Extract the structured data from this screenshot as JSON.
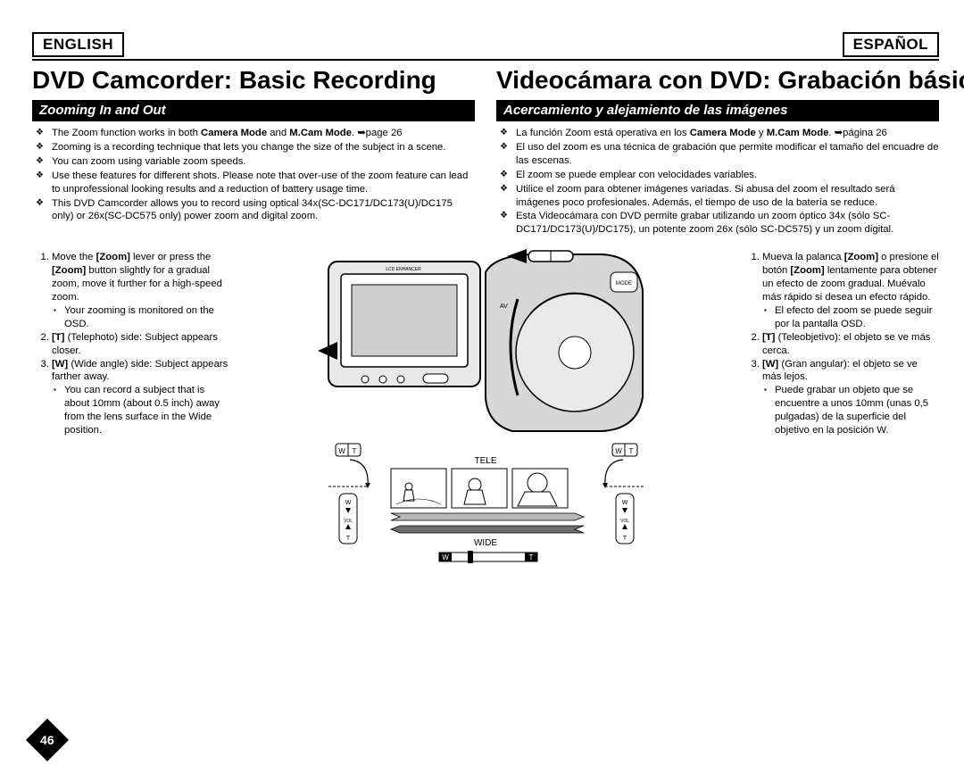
{
  "lang_left": "ENGLISH",
  "lang_right": "ESPAÑOL",
  "page_number": "46",
  "english": {
    "chapter": "DVD Camcorder: Basic Recording",
    "section": "Zooming In and Out",
    "bullets": [
      "The Zoom function works in both <b>Camera Mode</b> and <b>M.Cam Mode</b>. ➥page 26",
      "Zooming is a recording technique that lets you change the size of the subject in a scene.",
      "You can zoom using variable zoom speeds.",
      "Use these features for different shots. Please note that over-use of the zoom feature can lead to unprofessional looking results and a reduction of battery usage time.",
      "This DVD Camcorder allows you to record using optical 34x(SC-DC171/DC173(U)/DC175 only) or 26x(SC-DC575 only) power zoom and digital zoom."
    ],
    "steps": [
      {
        "text": "Move the <b>[Zoom]</b> lever or press the <b>[Zoom]</b> button slightly for a gradual zoom, move it further for a high-speed zoom.",
        "sub": [
          "Your zooming is monitored on the OSD."
        ]
      },
      {
        "text": "<b>[T]</b> (Telephoto) side: Subject appears closer."
      },
      {
        "text": "<b>[W]</b> (Wide angle) side: Subject appears farther away.",
        "sub": [
          "You can record a subject that is about 10mm (about 0.5 inch) away from the lens surface in the Wide position."
        ]
      }
    ]
  },
  "spanish": {
    "chapter": "Videocámara con DVD: Grabación básica",
    "section": "Acercamiento y alejamiento de las imágenes",
    "bullets": [
      "La función Zoom está operativa en los <b>Camera Mode</b> y <b>M.Cam Mode</b>. ➥página 26",
      "El uso del zoom es una técnica de grabación que permite modificar el tamaño del encuadre de las escenas.",
      "El zoom se puede emplear con velocidades variables.",
      "Utilice el zoom para obtener imágenes variadas. Si abusa del zoom el resultado será imágenes poco profesionales. Además, el tiempo de uso de la batería se reduce.",
      "Esta Videocámara con DVD permite grabar utilizando un zoom óptico 34x (sólo SC-DC171/DC173(U)/DC175), un potente zoom 26x (sólo SC-DC575) y un zoom digital."
    ],
    "steps": [
      {
        "text": "Mueva la palanca <b>[Zoom]</b> o presione el botón <b>[Zoom]</b> lentamente para obtener un efecto de zoom gradual. Muévalo más rápido si desea un efecto rápido.",
        "sub": [
          "El efecto del zoom se puede seguir por la pantalla OSD."
        ]
      },
      {
        "text": "<b>[T]</b> (Teleobjetivo): el objeto se ve más cerca."
      },
      {
        "text": "<b>[W]</b> (Gran angular): el objeto se ve más lejos.",
        "sub": [
          "Puede grabar un objeto que se encuentre a unos 10mm (unas 0,5 pulgadas) de la superficie del objetivo en la posición W."
        ]
      }
    ]
  },
  "figure": {
    "tele_label": "TELE",
    "wide_label": "WIDE",
    "w_mark": "W",
    "t_mark": "T",
    "vol_mark": "VOL",
    "lcd_label": "LCD ENHANCER"
  }
}
